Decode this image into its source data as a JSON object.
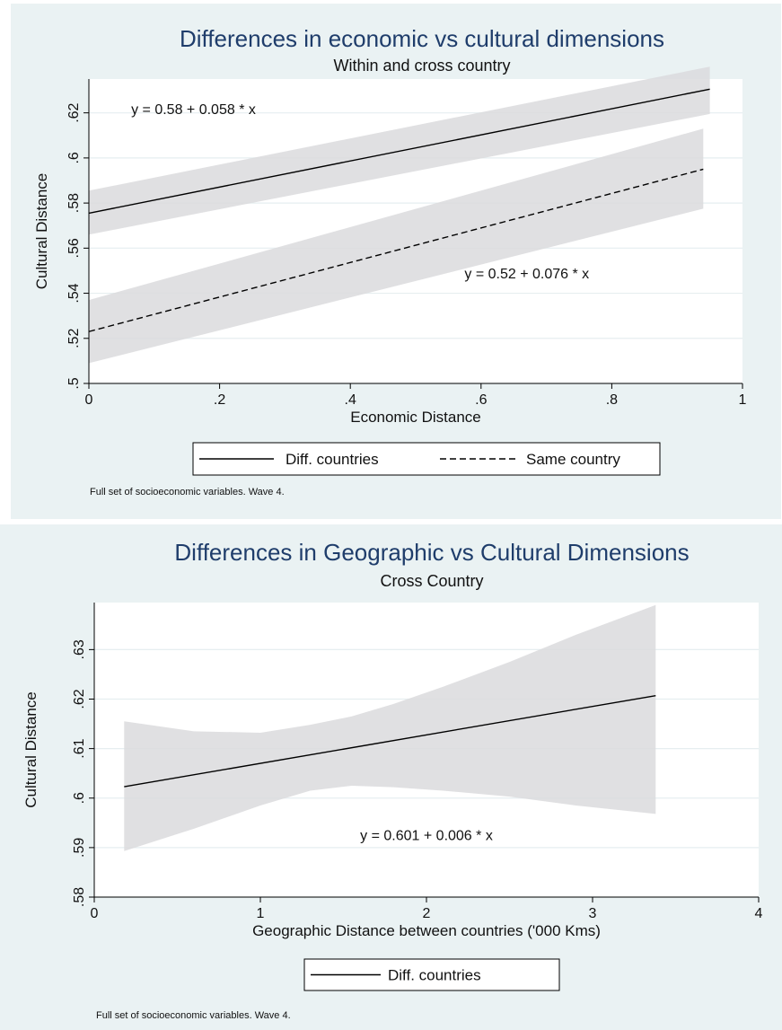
{
  "chart_data": [
    {
      "type": "line",
      "title": "Differences in economic vs cultural dimensions",
      "subtitle": "Within and cross country",
      "xlabel": "Economic Distance",
      "ylabel": "Cultural Distance",
      "xlim": [
        0,
        1
      ],
      "ylim": [
        0.5,
        0.635
      ],
      "x_ticks": [
        0,
        0.2,
        0.4,
        0.6,
        0.8,
        1
      ],
      "x_tick_labels": [
        "0",
        ".2",
        ".4",
        ".6",
        ".8",
        "1"
      ],
      "y_ticks": [
        0.5,
        0.52,
        0.54,
        0.56,
        0.58,
        0.6,
        0.62
      ],
      "y_tick_labels": [
        ".5",
        ".52",
        ".54",
        ".56",
        ".58",
        ".6",
        ".62"
      ],
      "grid": true,
      "legend_position": "bottom",
      "series": [
        {
          "name": "Diff. countries",
          "style": "solid",
          "x": [
            0,
            0.95
          ],
          "y": [
            0.5755,
            0.6305
          ],
          "ci_lower": [
            0.566,
            0.6195
          ],
          "ci_upper": [
            0.5855,
            0.6405
          ],
          "annotation": "y = 0.58 + 0.058 * x",
          "annotation_pos": [
            0.16,
            0.6195
          ]
        },
        {
          "name": "Same country",
          "style": "dashed",
          "x": [
            0,
            0.94
          ],
          "y": [
            0.523,
            0.595
          ],
          "ci_lower": [
            0.509,
            0.5775
          ],
          "ci_upper": [
            0.537,
            0.613
          ],
          "annotation": "y = 0.52 + 0.076 * x",
          "annotation_pos": [
            0.67,
            0.5465
          ]
        }
      ],
      "note": "Full set of socioeconomic variables. Wave 4."
    },
    {
      "type": "line",
      "title": "Differences in Geographic vs Cultural Dimensions",
      "subtitle": "Cross Country",
      "xlabel": "Geographic Distance between countries ('000 Kms)",
      "ylabel": "Cultural Distance",
      "xlim": [
        0,
        4
      ],
      "ylim": [
        0.58,
        0.6395
      ],
      "x_ticks": [
        0,
        1,
        2,
        3,
        4
      ],
      "x_tick_labels": [
        "0",
        "1",
        "2",
        "3",
        "4"
      ],
      "y_ticks": [
        0.58,
        0.59,
        0.6,
        0.61,
        0.62,
        0.63
      ],
      "y_tick_labels": [
        ".58",
        ".59",
        ".6",
        ".61",
        ".62",
        ".63"
      ],
      "grid": true,
      "legend_position": "bottom",
      "series": [
        {
          "name": "Diff. countries",
          "style": "solid",
          "x": [
            0.18,
            3.38
          ],
          "y": [
            0.6023,
            0.6207
          ],
          "ci_band_x": [
            0.18,
            0.6,
            1.0,
            1.3,
            1.55,
            1.8,
            2.1,
            2.5,
            2.9,
            3.38
          ],
          "ci_band_lower": [
            0.5893,
            0.5938,
            0.5985,
            0.6015,
            0.6025,
            0.6022,
            0.6015,
            0.6003,
            0.5985,
            0.5968
          ],
          "ci_band_upper": [
            0.6155,
            0.6135,
            0.6132,
            0.6148,
            0.6165,
            0.619,
            0.6225,
            0.6275,
            0.633,
            0.639
          ],
          "annotation": "y = 0.601 + 0.006 * x",
          "annotation_pos": [
            2.0,
            0.5915
          ]
        }
      ],
      "note": "Full set of socioeconomic variables. Wave 4."
    }
  ]
}
